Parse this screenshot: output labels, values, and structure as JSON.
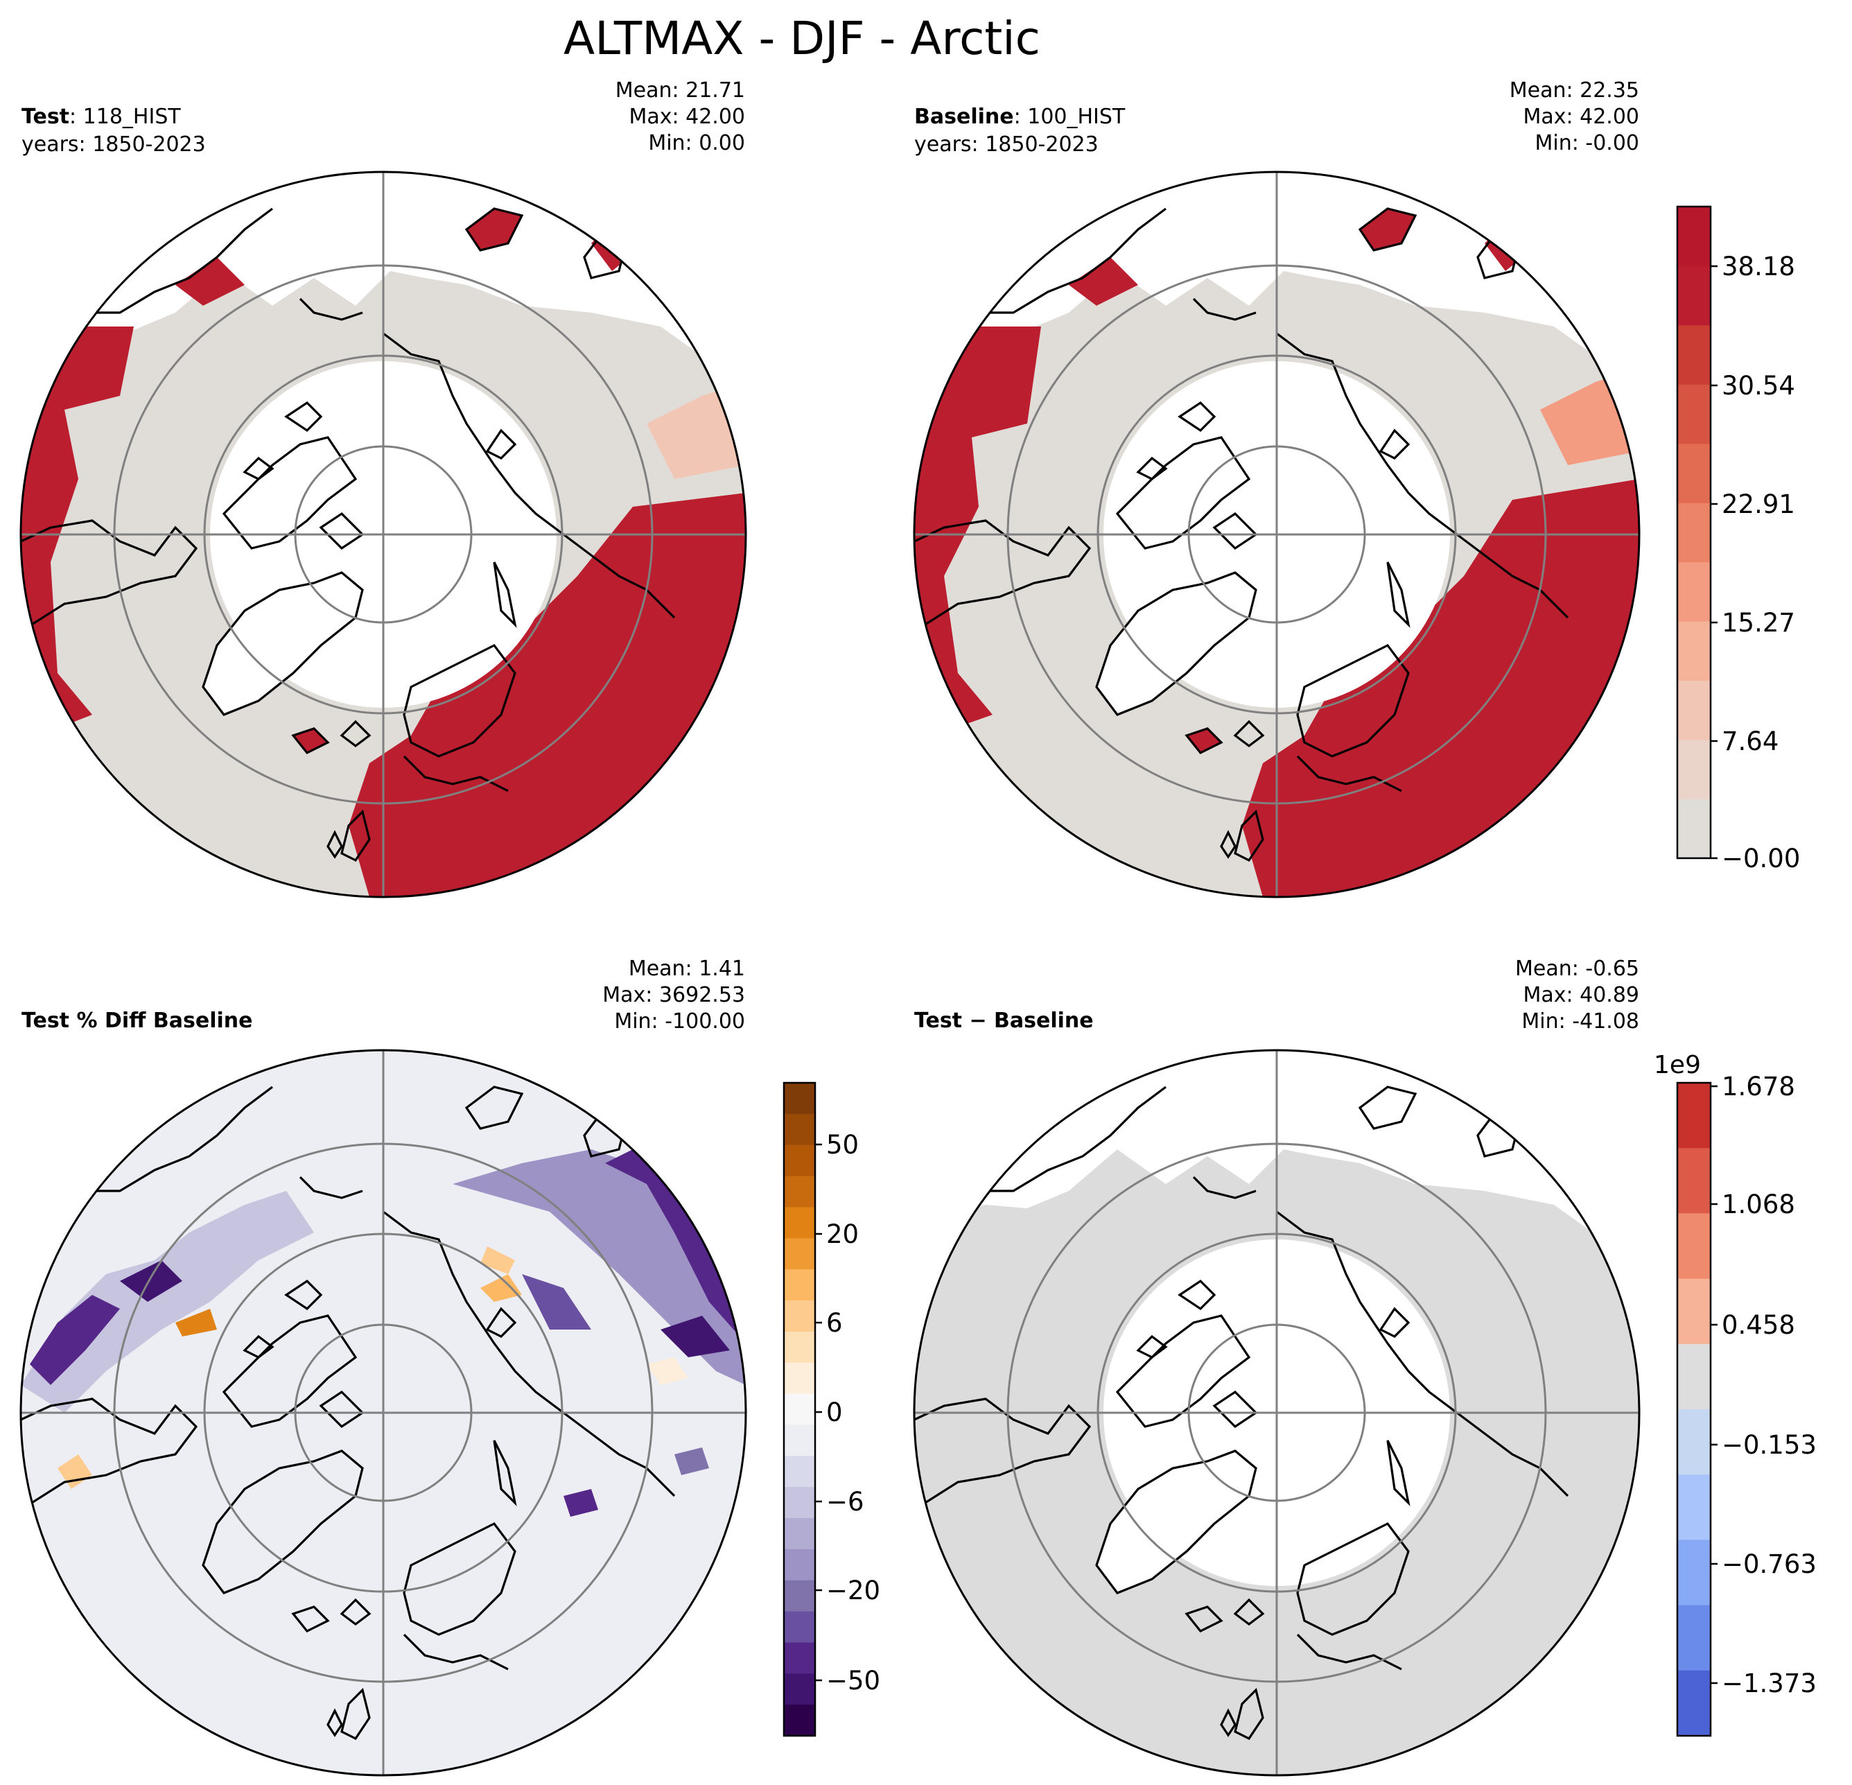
{
  "figure": {
    "title": "ALTMAX - DJF - Arctic"
  },
  "panels": {
    "test": {
      "label_bold": "Test",
      "label_rest": ": 118_HIST",
      "years": "years: 1850-2023",
      "mean": "Mean: 21.71",
      "max": "Max: 42.00",
      "min": "Min:  0.00"
    },
    "baseline": {
      "label_bold": "Baseline",
      "label_rest": ": 100_HIST",
      "years": "years: 1850-2023",
      "mean": "Mean: 22.35",
      "max": "Max: 42.00",
      "min": "Min: -0.00"
    },
    "pct_diff": {
      "label": "Test % Diff Baseline",
      "mean": "Mean:  1.41",
      "max": "Max: 3692.53",
      "min": "Min: -100.00"
    },
    "diff": {
      "label": "Test − Baseline",
      "mean": "Mean: -0.65",
      "max": "Max: 40.89",
      "min": "Min: -41.08"
    }
  },
  "colorbars": {
    "main": {
      "ticks": [
        "38.18",
        "30.54",
        "22.91",
        "15.27",
        "7.64",
        "−0.00"
      ],
      "colors": [
        "#e0dcd8",
        "#ead3c8",
        "#f2c6b4",
        "#f5b39a",
        "#f39c81",
        "#ec8468",
        "#e26c52",
        "#d65441",
        "#c93d35",
        "#bb1f2f",
        "#b8182c"
      ]
    },
    "pct": {
      "ticks": [
        "50",
        "20",
        "6",
        "0",
        "−6",
        "−20",
        "−50"
      ],
      "colors": [
        "#7f3b08",
        "#9a4a07",
        "#b35806",
        "#c86a0e",
        "#e08214",
        "#f09a33",
        "#fdb863",
        "#fdcb8e",
        "#fee0b6",
        "#fdeedc",
        "#f7f7f7",
        "#eceef3",
        "#d8daeb",
        "#c6c4de",
        "#b2abd2",
        "#9d94c5",
        "#8073ac",
        "#6a50a0",
        "#542788",
        "#3f1570",
        "#2d004b"
      ]
    },
    "diff": {
      "exponent": "1e9",
      "ticks": [
        "1.678",
        "1.068",
        "0.458",
        "−0.153",
        "−0.763",
        "−1.373"
      ],
      "colors": [
        "#c9312c",
        "#de5a48",
        "#ef8a6c",
        "#f6b398",
        "#dddddd",
        "#c6d7f1",
        "#a8c4fb",
        "#87a9f6",
        "#6a8bea",
        "#4c63d6"
      ]
    }
  },
  "map_colors": {
    "land": "#e0dcd8",
    "active": "#bb1f2f",
    "diff_gray": "#dcdcdc",
    "pct_bg": "#eceef3"
  }
}
